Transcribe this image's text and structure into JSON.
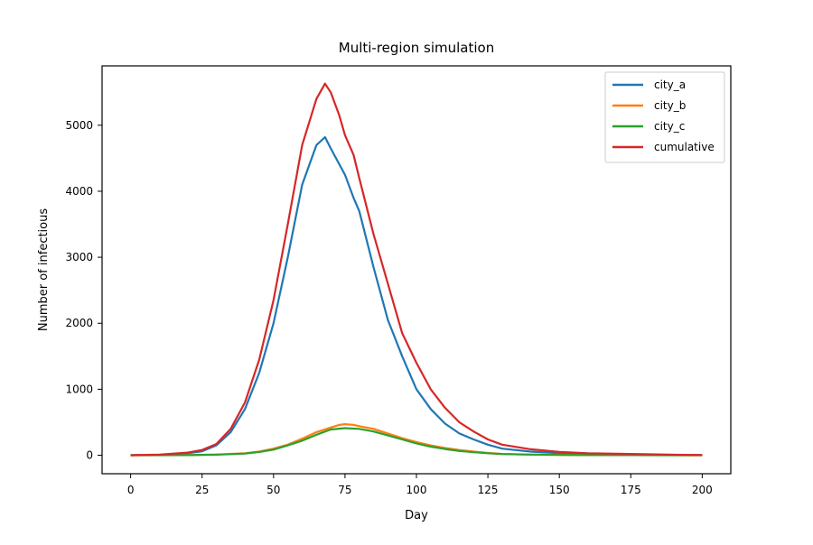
{
  "chart_data": {
    "type": "line",
    "title": "Multi-region simulation",
    "xlabel": "Day",
    "ylabel": "Number of infectious",
    "xlim": [
      -10,
      210
    ],
    "ylim": [
      -280,
      5900
    ],
    "xticks": [
      0,
      25,
      50,
      75,
      100,
      125,
      150,
      175,
      200
    ],
    "yticks": [
      0,
      1000,
      2000,
      3000,
      4000,
      5000
    ],
    "grid": false,
    "legend_position": "top-right",
    "series": [
      {
        "name": "city_a",
        "color": "#1f77b4",
        "points": [
          [
            0,
            0
          ],
          [
            10,
            5
          ],
          [
            20,
            30
          ],
          [
            25,
            60
          ],
          [
            30,
            150
          ],
          [
            35,
            350
          ],
          [
            40,
            700
          ],
          [
            45,
            1250
          ],
          [
            50,
            2000
          ],
          [
            55,
            3000
          ],
          [
            60,
            4100
          ],
          [
            65,
            4700
          ],
          [
            68,
            4820
          ],
          [
            70,
            4650
          ],
          [
            75,
            4250
          ],
          [
            78,
            3900
          ],
          [
            80,
            3700
          ],
          [
            85,
            2850
          ],
          [
            90,
            2050
          ],
          [
            95,
            1500
          ],
          [
            100,
            1000
          ],
          [
            105,
            700
          ],
          [
            110,
            480
          ],
          [
            115,
            330
          ],
          [
            120,
            240
          ],
          [
            125,
            160
          ],
          [
            130,
            100
          ],
          [
            140,
            55
          ],
          [
            150,
            30
          ],
          [
            160,
            15
          ],
          [
            175,
            8
          ],
          [
            200,
            2
          ]
        ]
      },
      {
        "name": "city_b",
        "color": "#ff7f0e",
        "points": [
          [
            0,
            0
          ],
          [
            20,
            3
          ],
          [
            30,
            10
          ],
          [
            40,
            30
          ],
          [
            45,
            55
          ],
          [
            50,
            100
          ],
          [
            55,
            160
          ],
          [
            60,
            250
          ],
          [
            65,
            350
          ],
          [
            70,
            420
          ],
          [
            73,
            460
          ],
          [
            75,
            470
          ],
          [
            78,
            460
          ],
          [
            80,
            440
          ],
          [
            85,
            400
          ],
          [
            90,
            330
          ],
          [
            95,
            260
          ],
          [
            100,
            200
          ],
          [
            105,
            150
          ],
          [
            110,
            110
          ],
          [
            115,
            80
          ],
          [
            120,
            55
          ],
          [
            125,
            35
          ],
          [
            130,
            20
          ],
          [
            140,
            10
          ],
          [
            150,
            5
          ],
          [
            175,
            2
          ],
          [
            200,
            0
          ]
        ]
      },
      {
        "name": "city_c",
        "color": "#2ca02c",
        "points": [
          [
            0,
            0
          ],
          [
            20,
            2
          ],
          [
            30,
            8
          ],
          [
            40,
            25
          ],
          [
            45,
            50
          ],
          [
            50,
            85
          ],
          [
            55,
            150
          ],
          [
            60,
            220
          ],
          [
            65,
            310
          ],
          [
            70,
            390
          ],
          [
            75,
            410
          ],
          [
            80,
            400
          ],
          [
            85,
            360
          ],
          [
            90,
            300
          ],
          [
            95,
            240
          ],
          [
            100,
            180
          ],
          [
            105,
            130
          ],
          [
            110,
            95
          ],
          [
            115,
            65
          ],
          [
            120,
            45
          ],
          [
            125,
            30
          ],
          [
            130,
            18
          ],
          [
            140,
            10
          ],
          [
            150,
            5
          ],
          [
            175,
            2
          ],
          [
            200,
            0
          ]
        ]
      },
      {
        "name": "cumulative",
        "color": "#d62728",
        "points": [
          [
            0,
            0
          ],
          [
            10,
            8
          ],
          [
            20,
            40
          ],
          [
            25,
            80
          ],
          [
            30,
            170
          ],
          [
            35,
            400
          ],
          [
            40,
            800
          ],
          [
            45,
            1450
          ],
          [
            50,
            2350
          ],
          [
            55,
            3500
          ],
          [
            60,
            4700
          ],
          [
            65,
            5400
          ],
          [
            68,
            5630
          ],
          [
            70,
            5500
          ],
          [
            73,
            5150
          ],
          [
            75,
            4850
          ],
          [
            78,
            4550
          ],
          [
            80,
            4200
          ],
          [
            85,
            3350
          ],
          [
            90,
            2600
          ],
          [
            95,
            1850
          ],
          [
            100,
            1400
          ],
          [
            105,
            1000
          ],
          [
            110,
            720
          ],
          [
            115,
            500
          ],
          [
            120,
            360
          ],
          [
            125,
            240
          ],
          [
            130,
            160
          ],
          [
            140,
            90
          ],
          [
            150,
            50
          ],
          [
            160,
            30
          ],
          [
            175,
            20
          ],
          [
            200,
            2
          ]
        ]
      }
    ]
  }
}
